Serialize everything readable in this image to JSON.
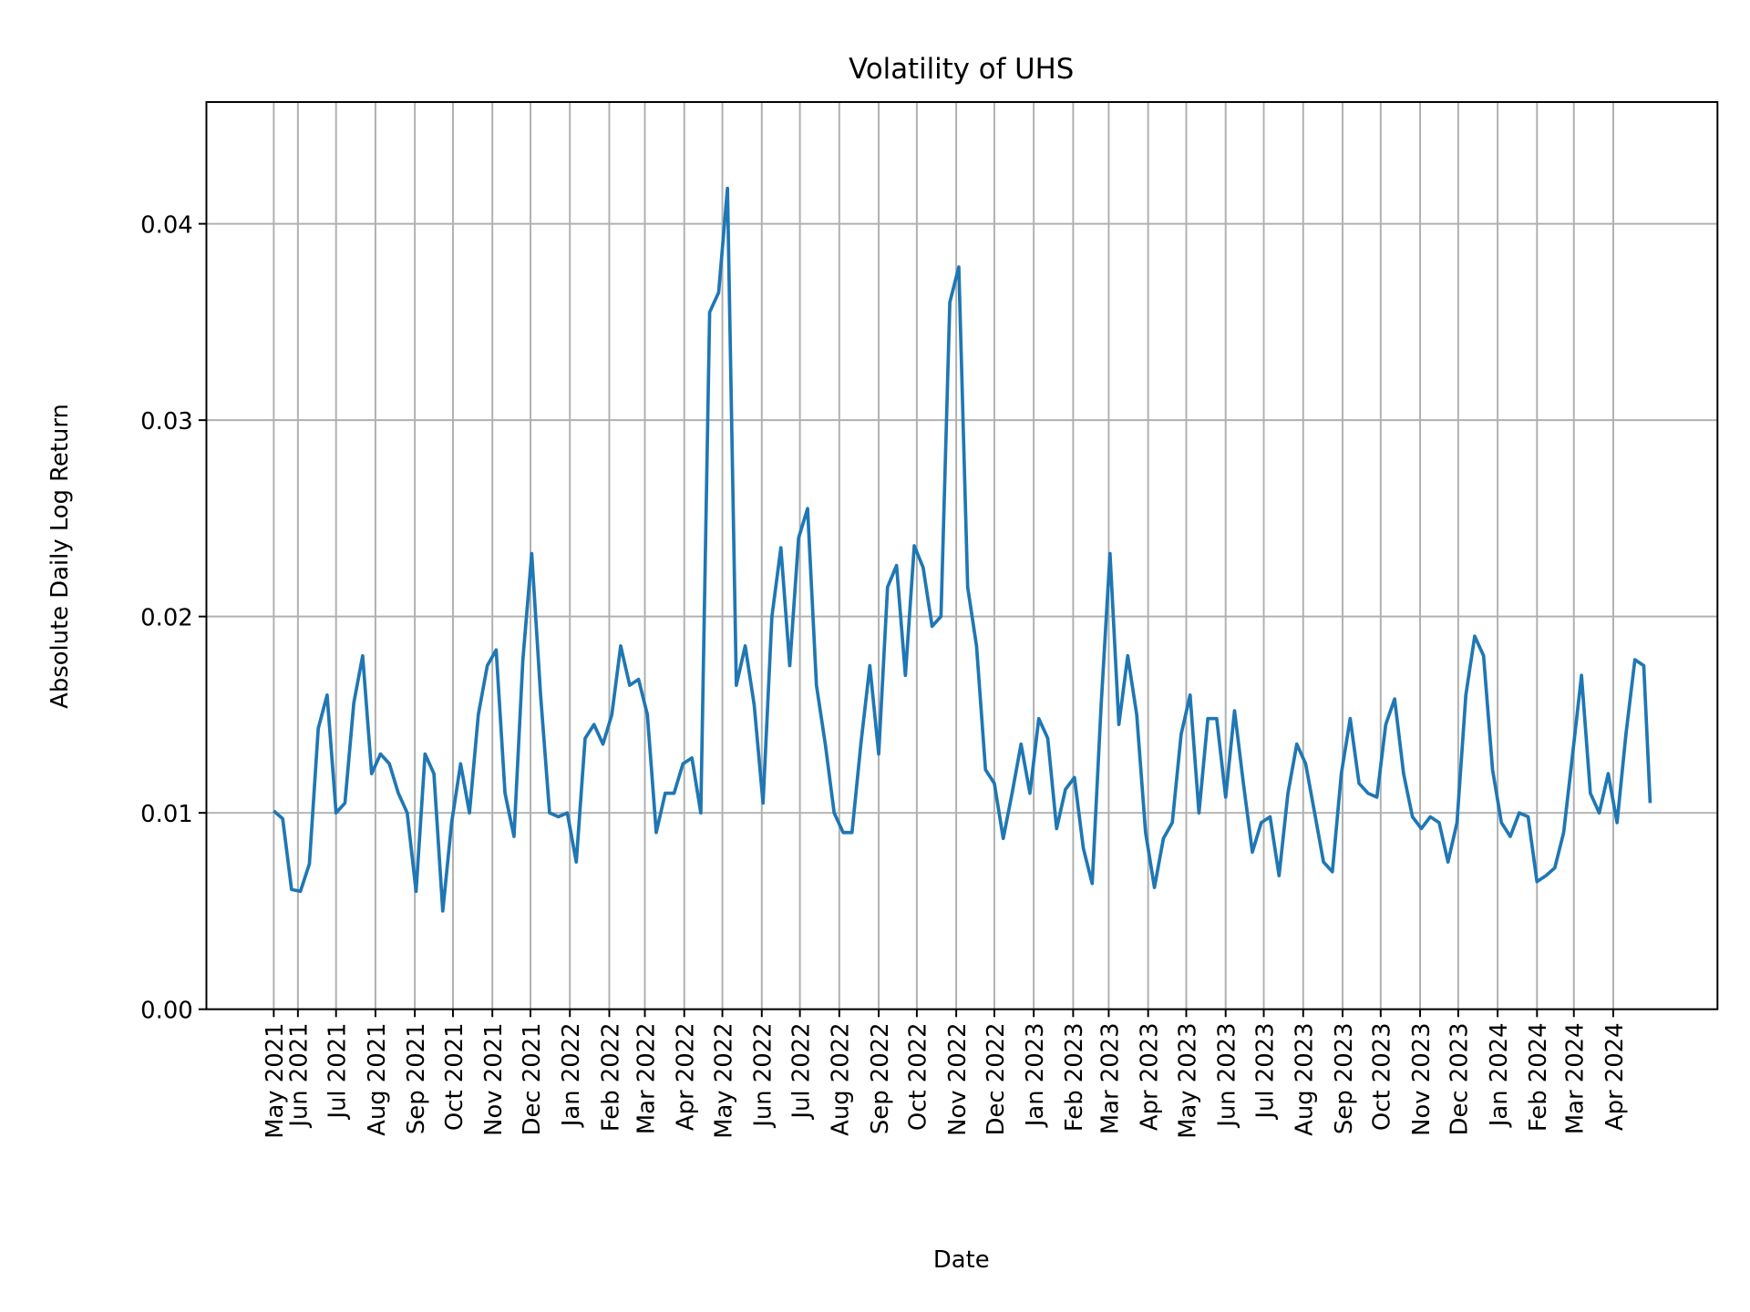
{
  "chart_data": {
    "type": "line",
    "title": "Volatility of UHS",
    "xlabel": "Date",
    "ylabel": "Absolute Daily Log Return",
    "xlim": [
      "2021-03-21",
      "2024-06-22"
    ],
    "ylim": [
      0,
      0.0462
    ],
    "grid": true,
    "line_color": "#1f77b4",
    "yticks": [
      {
        "value": 0.0,
        "label": "0.00"
      },
      {
        "value": 0.01,
        "label": "0.01"
      },
      {
        "value": 0.02,
        "label": "0.02"
      },
      {
        "value": 0.03,
        "label": "0.03"
      },
      {
        "value": 0.04,
        "label": "0.04"
      }
    ],
    "xticks": [
      {
        "date": "2021-05-13",
        "label": "May 2021"
      },
      {
        "date": "2021-06-01",
        "label": "Jun 2021"
      },
      {
        "date": "2021-07-01",
        "label": "Jul 2021"
      },
      {
        "date": "2021-08-01",
        "label": "Aug 2021"
      },
      {
        "date": "2021-09-01",
        "label": "Sep 2021"
      },
      {
        "date": "2021-10-01",
        "label": "Oct 2021"
      },
      {
        "date": "2021-11-01",
        "label": "Nov 2021"
      },
      {
        "date": "2021-12-01",
        "label": "Dec 2021"
      },
      {
        "date": "2022-01-01",
        "label": "Jan 2022"
      },
      {
        "date": "2022-02-01",
        "label": "Feb 2022"
      },
      {
        "date": "2022-03-01",
        "label": "Mar 2022"
      },
      {
        "date": "2022-04-01",
        "label": "Apr 2022"
      },
      {
        "date": "2022-05-01",
        "label": "May 2022"
      },
      {
        "date": "2022-06-01",
        "label": "Jun 2022"
      },
      {
        "date": "2022-07-01",
        "label": "Jul 2022"
      },
      {
        "date": "2022-08-01",
        "label": "Aug 2022"
      },
      {
        "date": "2022-09-01",
        "label": "Sep 2022"
      },
      {
        "date": "2022-10-01",
        "label": "Oct 2022"
      },
      {
        "date": "2022-11-01",
        "label": "Nov 2022"
      },
      {
        "date": "2022-12-01",
        "label": "Dec 2022"
      },
      {
        "date": "2023-01-01",
        "label": "Jan 2023"
      },
      {
        "date": "2023-02-01",
        "label": "Feb 2023"
      },
      {
        "date": "2023-03-01",
        "label": "Mar 2023"
      },
      {
        "date": "2023-04-01",
        "label": "Apr 2023"
      },
      {
        "date": "2023-05-01",
        "label": "May 2023"
      },
      {
        "date": "2023-06-01",
        "label": "Jun 2023"
      },
      {
        "date": "2023-07-01",
        "label": "Jul 2023"
      },
      {
        "date": "2023-08-01",
        "label": "Aug 2023"
      },
      {
        "date": "2023-09-01",
        "label": "Sep 2023"
      },
      {
        "date": "2023-10-01",
        "label": "Oct 2023"
      },
      {
        "date": "2023-11-01",
        "label": "Nov 2023"
      },
      {
        "date": "2023-12-01",
        "label": "Dec 2023"
      },
      {
        "date": "2024-01-01",
        "label": "Jan 2024"
      },
      {
        "date": "2024-02-01",
        "label": "Feb 2024"
      },
      {
        "date": "2024-03-01",
        "label": "Mar 2024"
      },
      {
        "date": "2024-04-01",
        "label": "Apr 2024"
      }
    ],
    "series": [
      {
        "x": [
          "2021-05-13",
          "2021-05-20",
          "2021-05-27",
          "2021-06-03",
          "2021-06-10",
          "2021-06-17",
          "2021-06-24",
          "2021-07-01",
          "2021-07-08",
          "2021-07-15",
          "2021-07-22",
          "2021-07-29",
          "2021-08-05",
          "2021-08-12",
          "2021-08-19",
          "2021-08-26",
          "2021-09-02",
          "2021-09-09",
          "2021-09-16",
          "2021-09-23",
          "2021-09-30",
          "2021-10-07",
          "2021-10-14",
          "2021-10-21",
          "2021-10-28",
          "2021-11-04",
          "2021-11-11",
          "2021-11-18",
          "2021-11-25",
          "2021-12-02",
          "2021-12-09",
          "2021-12-16",
          "2021-12-23",
          "2021-12-30",
          "2022-01-06",
          "2022-01-13",
          "2022-01-20",
          "2022-01-27",
          "2022-02-03",
          "2022-02-10",
          "2022-02-17",
          "2022-02-24",
          "2022-03-03",
          "2022-03-10",
          "2022-03-17",
          "2022-03-24",
          "2022-03-31",
          "2022-04-07",
          "2022-04-14",
          "2022-04-21",
          "2022-04-28",
          "2022-05-05",
          "2022-05-12",
          "2022-05-19",
          "2022-05-26",
          "2022-06-02",
          "2022-06-09",
          "2022-06-16",
          "2022-06-23",
          "2022-06-30",
          "2022-07-07",
          "2022-07-14",
          "2022-07-21",
          "2022-07-28",
          "2022-08-04",
          "2022-08-11",
          "2022-08-18",
          "2022-08-25",
          "2022-09-01",
          "2022-09-08",
          "2022-09-15",
          "2022-09-22",
          "2022-09-29",
          "2022-10-06",
          "2022-10-13",
          "2022-10-20",
          "2022-10-27",
          "2022-11-03",
          "2022-11-10",
          "2022-11-17",
          "2022-11-24",
          "2022-12-01",
          "2022-12-08",
          "2022-12-15",
          "2022-12-22",
          "2022-12-29",
          "2023-01-05",
          "2023-01-12",
          "2023-01-19",
          "2023-01-26",
          "2023-02-02",
          "2023-02-09",
          "2023-02-16",
          "2023-02-23",
          "2023-03-02",
          "2023-03-09",
          "2023-03-16",
          "2023-03-23",
          "2023-03-30",
          "2023-04-06",
          "2023-04-13",
          "2023-04-20",
          "2023-04-27",
          "2023-05-04",
          "2023-05-11",
          "2023-05-18",
          "2023-05-25",
          "2023-06-01",
          "2023-06-08",
          "2023-06-15",
          "2023-06-22",
          "2023-06-29",
          "2023-07-06",
          "2023-07-13",
          "2023-07-20",
          "2023-07-27",
          "2023-08-03",
          "2023-08-10",
          "2023-08-17",
          "2023-08-24",
          "2023-08-31",
          "2023-09-07",
          "2023-09-14",
          "2023-09-21",
          "2023-09-28",
          "2023-10-05",
          "2023-10-12",
          "2023-10-19",
          "2023-10-26",
          "2023-11-02",
          "2023-11-09",
          "2023-11-16",
          "2023-11-23",
          "2023-11-30",
          "2023-12-07",
          "2023-12-14",
          "2023-12-21",
          "2023-12-28",
          "2024-01-04",
          "2024-01-11",
          "2024-01-18",
          "2024-01-25",
          "2024-02-01",
          "2024-02-08",
          "2024-02-15",
          "2024-02-22",
          "2024-02-29",
          "2024-03-07",
          "2024-03-14",
          "2024-03-21",
          "2024-03-28",
          "2024-04-04",
          "2024-04-11",
          "2024-04-18",
          "2024-04-25",
          "2024-04-30"
        ],
        "y": [
          0.0101,
          0.0097,
          0.0061,
          0.006,
          0.0074,
          0.0143,
          0.016,
          0.01,
          0.0105,
          0.0156,
          0.018,
          0.012,
          0.013,
          0.0125,
          0.011,
          0.01,
          0.006,
          0.013,
          0.012,
          0.005,
          0.0095,
          0.0125,
          0.01,
          0.015,
          0.0175,
          0.0183,
          0.011,
          0.0088,
          0.0178,
          0.0232,
          0.016,
          0.01,
          0.0098,
          0.01,
          0.0075,
          0.0138,
          0.0145,
          0.0135,
          0.015,
          0.0185,
          0.0165,
          0.0168,
          0.015,
          0.009,
          0.011,
          0.011,
          0.0125,
          0.0128,
          0.01,
          0.0355,
          0.0365,
          0.0418,
          0.0165,
          0.0185,
          0.0155,
          0.0105,
          0.02,
          0.0235,
          0.0175,
          0.024,
          0.0255,
          0.0165,
          0.0135,
          0.01,
          0.009,
          0.009,
          0.0135,
          0.0175,
          0.013,
          0.0215,
          0.0226,
          0.017,
          0.0236,
          0.0225,
          0.0195,
          0.02,
          0.036,
          0.0378,
          0.0215,
          0.0185,
          0.0122,
          0.0115,
          0.0087,
          0.011,
          0.0135,
          0.011,
          0.0148,
          0.0138,
          0.0092,
          0.0112,
          0.0118,
          0.0082,
          0.0064,
          0.0155,
          0.0232,
          0.0145,
          0.018,
          0.015,
          0.009,
          0.0062,
          0.0087,
          0.0095,
          0.014,
          0.016,
          0.01,
          0.0148,
          0.0148,
          0.0108,
          0.0152,
          0.0115,
          0.008,
          0.0095,
          0.0098,
          0.0068,
          0.011,
          0.0135,
          0.0125,
          0.01,
          0.0075,
          0.007,
          0.012,
          0.0148,
          0.0115,
          0.011,
          0.0108,
          0.0145,
          0.0158,
          0.012,
          0.0098,
          0.0092,
          0.0098,
          0.0095,
          0.0075,
          0.0095,
          0.016,
          0.019,
          0.018,
          0.0122,
          0.0095,
          0.0088,
          0.01,
          0.0098,
          0.0065,
          0.0068,
          0.0072,
          0.009,
          0.013,
          0.017,
          0.011,
          0.01,
          0.012,
          0.0095,
          0.014,
          0.0178,
          0.0175,
          0.0105
        ]
      }
    ]
  }
}
